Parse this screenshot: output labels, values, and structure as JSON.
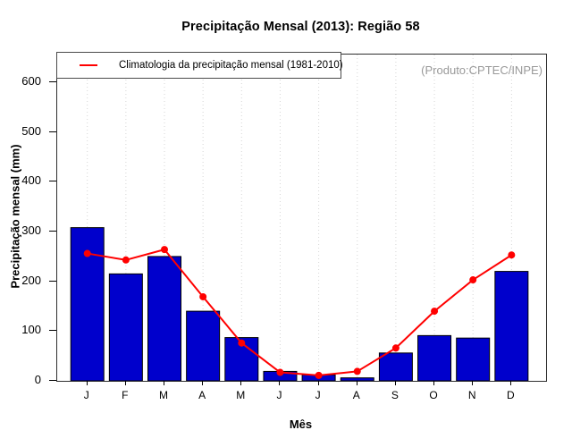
{
  "page": {
    "title": "Precipitação Mensal (2013): Região 58",
    "watermark": "(Produto:CPTEC/INPE)"
  },
  "legend": {
    "label": "Climatologia da precipitação mensal (1981-2010)"
  },
  "chart_data": {
    "type": "bar",
    "title": "Precipitação Mensal (2013): Região 58",
    "xlabel": "Mês",
    "ylabel": "Precipitação mensal (mm)",
    "categories": [
      "J",
      "F",
      "M",
      "A",
      "M",
      "J",
      "J",
      "A",
      "S",
      "O",
      "N",
      "D"
    ],
    "series": [
      {
        "name": "Precipitação Mensal (2013)",
        "type": "bar",
        "color": "#0000CC",
        "border_color": "#000000",
        "values": [
          308,
          215,
          250,
          140,
          87,
          19,
          12,
          6,
          56,
          91,
          86,
          220
        ]
      },
      {
        "name": "Climatologia da precipitação mensal (1981-2010)",
        "type": "line",
        "color": "#FF0000",
        "marker": "filled-circle",
        "values": [
          256,
          243,
          264,
          169,
          76,
          17,
          11,
          19,
          66,
          140,
          203,
          253
        ]
      }
    ],
    "ylim": [
      0,
      656
    ],
    "yticks": [
      0,
      100,
      200,
      300,
      400,
      500,
      600
    ],
    "grid": "vertical dotted gridlines at each month",
    "legend_position": "top-left",
    "annotation": "(Produto:CPTEC/INPE)"
  },
  "colors": {
    "bar": "#0000CC",
    "bar_border": "#000000",
    "line": "#FF0000",
    "grid": "#d6d6d6",
    "watermark": "#999999",
    "axis": "#000000"
  }
}
